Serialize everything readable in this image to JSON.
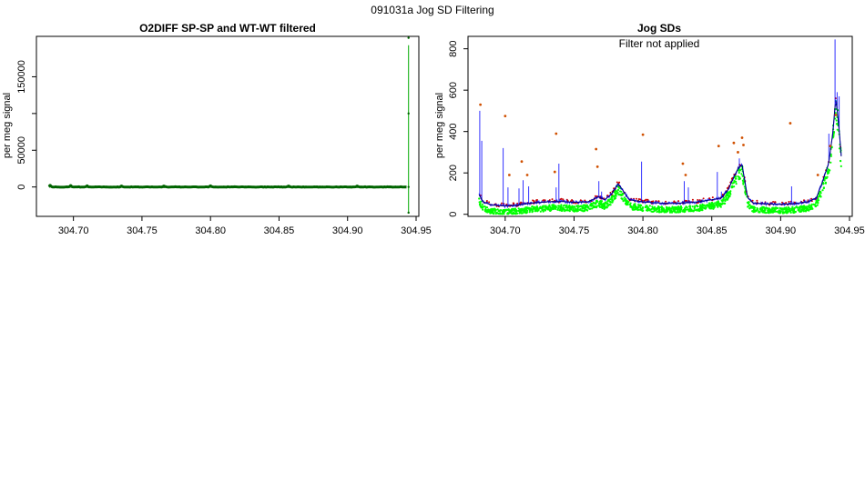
{
  "page_title": "091031a   Jog SD Filtering",
  "colors": {
    "dark_green": "#006400",
    "green": "#00ff00",
    "blue": "#0000ff",
    "red": "#cc0000",
    "orange": "#d05000",
    "navy": "#000080"
  },
  "chart_data": [
    {
      "type": "scatter",
      "title": "O2DIFF SP-SP and WT-WT filtered",
      "subtitle": "",
      "xlabel": "",
      "ylabel": "per meg signal",
      "xlim": [
        304.673,
        304.952
      ],
      "ylim": [
        -40000,
        205000
      ],
      "xticks": [
        304.7,
        304.75,
        304.8,
        304.85,
        304.9,
        304.95
      ],
      "xtick_labels": [
        "304.70",
        "304.75",
        "304.80",
        "304.85",
        "304.90",
        "304.95"
      ],
      "yticks": [
        0,
        50000,
        100000,
        150000
      ],
      "ytick_labels": [
        "0",
        "50000",
        "",
        "150000"
      ],
      "grid": false,
      "series": [
        {
          "color": "#006400",
          "baseline": {
            "x_range": [
              304.682,
              304.943
            ],
            "y_typical": 0,
            "bumps": [
              {
                "x": 304.683,
                "y": 1800
              },
              {
                "x": 304.698,
                "y": 1500
              },
              {
                "x": 304.71,
                "y": 1200
              },
              {
                "x": 304.735,
                "y": 1000
              },
              {
                "x": 304.766,
                "y": 900
              },
              {
                "x": 304.8,
                "y": 1200
              },
              {
                "x": 304.857,
                "y": 900
              },
              {
                "x": 304.907,
                "y": 1000
              }
            ]
          },
          "spike": {
            "x": 304.9445,
            "y_min": -35000,
            "y_max": 203000
          }
        }
      ]
    },
    {
      "type": "line",
      "title": "Jog SDs",
      "annotation": "Filter not applied",
      "xlabel": "",
      "ylabel": "per meg signal",
      "xlim": [
        304.673,
        304.952
      ],
      "ylim": [
        -10,
        860
      ],
      "xticks": [
        304.7,
        304.75,
        304.8,
        304.85,
        304.9,
        304.95
      ],
      "xtick_labels": [
        "304.70",
        "304.75",
        "304.80",
        "304.85",
        "304.90",
        "304.95"
      ],
      "yticks": [
        0,
        200,
        400,
        600,
        800
      ],
      "ytick_labels": [
        "0",
        "200",
        "400",
        "600",
        "800"
      ],
      "grid": false,
      "baseline_profile": {
        "x": [
          304.681,
          304.684,
          304.69,
          304.7,
          304.71,
          304.72,
          304.73,
          304.74,
          304.75,
          304.76,
          304.768,
          304.772,
          304.777,
          304.782,
          304.785,
          304.79,
          304.8,
          304.81,
          304.82,
          304.83,
          304.84,
          304.85,
          304.857,
          304.862,
          304.866,
          304.869,
          304.872,
          304.876,
          304.88,
          304.89,
          304.9,
          304.91,
          304.92,
          304.926,
          304.93,
          304.935,
          304.938,
          304.94,
          304.942,
          304.944
        ],
        "y": [
          95,
          60,
          45,
          40,
          45,
          55,
          60,
          62,
          58,
          60,
          85,
          70,
          95,
          150,
          120,
          70,
          60,
          55,
          52,
          55,
          60,
          70,
          80,
          120,
          180,
          220,
          240,
          80,
          55,
          50,
          48,
          52,
          60,
          80,
          150,
          250,
          400,
          560,
          450,
          280
        ]
      },
      "series": [
        {
          "color": "#00ff00",
          "offset_below_profile": 30,
          "spread": 40
        },
        {
          "color": "#0000ff",
          "offset_below_profile": 0,
          "spikes": [
            {
              "x": 304.6815,
              "y": 500
            },
            {
              "x": 304.683,
              "y": 355
            },
            {
              "x": 304.6985,
              "y": 320
            },
            {
              "x": 304.702,
              "y": 130
            },
            {
              "x": 304.71,
              "y": 125
            },
            {
              "x": 304.713,
              "y": 165
            },
            {
              "x": 304.717,
              "y": 135
            },
            {
              "x": 304.737,
              "y": 130
            },
            {
              "x": 304.739,
              "y": 245
            },
            {
              "x": 304.768,
              "y": 160
            },
            {
              "x": 304.77,
              "y": 110
            },
            {
              "x": 304.799,
              "y": 255
            },
            {
              "x": 304.83,
              "y": 160
            },
            {
              "x": 304.833,
              "y": 130
            },
            {
              "x": 304.854,
              "y": 205
            },
            {
              "x": 304.857,
              "y": 110
            },
            {
              "x": 304.87,
              "y": 270
            },
            {
              "x": 304.908,
              "y": 135
            },
            {
              "x": 304.935,
              "y": 390
            },
            {
              "x": 304.9395,
              "y": 845
            },
            {
              "x": 304.941,
              "y": 590
            },
            {
              "x": 304.9425,
              "y": 570
            }
          ]
        },
        {
          "color": "#d05000",
          "points": [
            {
              "x": 304.682,
              "y": 530
            },
            {
              "x": 304.7,
              "y": 475
            },
            {
              "x": 304.712,
              "y": 255
            },
            {
              "x": 304.716,
              "y": 190
            },
            {
              "x": 304.703,
              "y": 190
            },
            {
              "x": 304.737,
              "y": 390
            },
            {
              "x": 304.736,
              "y": 205
            },
            {
              "x": 304.766,
              "y": 315
            },
            {
              "x": 304.767,
              "y": 230
            },
            {
              "x": 304.8,
              "y": 385
            },
            {
              "x": 304.829,
              "y": 245
            },
            {
              "x": 304.831,
              "y": 190
            },
            {
              "x": 304.855,
              "y": 330
            },
            {
              "x": 304.866,
              "y": 345
            },
            {
              "x": 304.869,
              "y": 300
            },
            {
              "x": 304.872,
              "y": 370
            },
            {
              "x": 304.873,
              "y": 335
            },
            {
              "x": 304.907,
              "y": 440
            },
            {
              "x": 304.927,
              "y": 190
            },
            {
              "x": 304.936,
              "y": 330
            },
            {
              "x": 304.94,
              "y": 480
            }
          ]
        }
      ]
    }
  ]
}
